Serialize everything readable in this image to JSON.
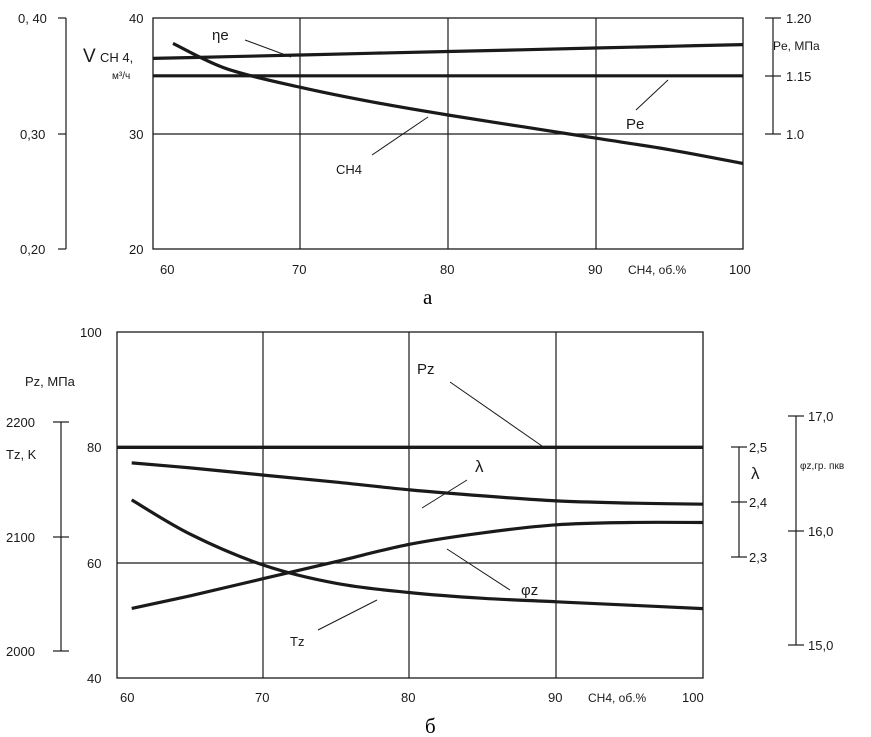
{
  "chart_data": [
    {
      "type": "line",
      "caption": "а",
      "x": [
        60,
        65,
        70,
        75,
        80,
        85,
        90,
        95,
        100
      ],
      "xlim": [
        60,
        100
      ],
      "x_ticks": [
        "60",
        "70",
        "80",
        "90",
        "100"
      ],
      "xlabel": "CH4, об.%",
      "main_axis": {
        "label_main": "V",
        "label_sub": "CH 4,",
        "label_unit": "м³/ч",
        "ylim": [
          20,
          40
        ],
        "ticks": [
          "40",
          "30",
          "20"
        ]
      },
      "left_axis": {
        "ylim": [
          0.2,
          0.4
        ],
        "ticks": [
          "0, 40",
          "0,30",
          "0,20"
        ]
      },
      "right_axis": {
        "label": "Pe, МПа",
        "ticks": [
          "1.20",
          "1.15",
          "1.0"
        ]
      },
      "grid": true,
      "series": [
        {
          "name": "ηe",
          "axis": "left",
          "values": [
            0.365,
            0.3665,
            0.368,
            0.3695,
            0.371,
            0.3725,
            0.374,
            0.3755,
            0.377
          ]
        },
        {
          "name": "Pe",
          "axis": "main",
          "values": [
            35.0,
            35.0,
            35.0,
            35.0,
            35.0,
            35.0,
            35.0,
            35.0,
            35.0
          ]
        },
        {
          "name": "CH4",
          "axis": "main",
          "values": [
            37.8,
            35.6,
            34.0,
            32.7,
            31.6,
            30.6,
            29.6,
            28.6,
            27.4
          ]
        }
      ]
    },
    {
      "type": "line",
      "caption": "б",
      "x": [
        61,
        65,
        70,
        75,
        80,
        85,
        90,
        95,
        100
      ],
      "xlim": [
        60,
        100
      ],
      "x_ticks": [
        "60",
        "70",
        "80",
        "90",
        "100"
      ],
      "xlabel": "CH4, об.%",
      "main_axis": {
        "label": "Pz, МПа",
        "ylim": [
          40,
          100
        ],
        "ticks": [
          "100",
          "80",
          "60",
          "40"
        ]
      },
      "left_axis": {
        "label": "Tz, K",
        "ylim": [
          2000,
          2200
        ],
        "ticks": [
          "2200",
          "2100",
          "2000"
        ]
      },
      "lambda_axis": {
        "label": "λ",
        "ylim": [
          2.3,
          2.5
        ],
        "ticks": [
          "2,5",
          "2,4",
          "2,3"
        ]
      },
      "right_axis": {
        "label": "φz,гр. пкв",
        "ylim": [
          15.0,
          17.0
        ],
        "ticks": [
          "17,0",
          "16,0",
          "15,0"
        ]
      },
      "grid": true,
      "series": [
        {
          "name": "Pz",
          "axis": "main",
          "values": [
            80,
            80,
            80,
            80,
            80,
            80,
            80,
            80,
            80
          ]
        },
        {
          "name": "λ",
          "axis": "lambda",
          "values": [
            2.471,
            2.462,
            2.449,
            2.436,
            2.422,
            2.411,
            2.402,
            2.398,
            2.396
          ]
        },
        {
          "name": "Tz",
          "axis": "left",
          "values": [
            2132,
            2102,
            2075,
            2059,
            2051,
            2046,
            2043,
            2040,
            2037
          ]
        },
        {
          "name": "φz",
          "axis": "right",
          "values": [
            15.32,
            15.43,
            15.58,
            15.73,
            15.88,
            15.98,
            16.05,
            16.07,
            16.07
          ]
        }
      ]
    }
  ]
}
